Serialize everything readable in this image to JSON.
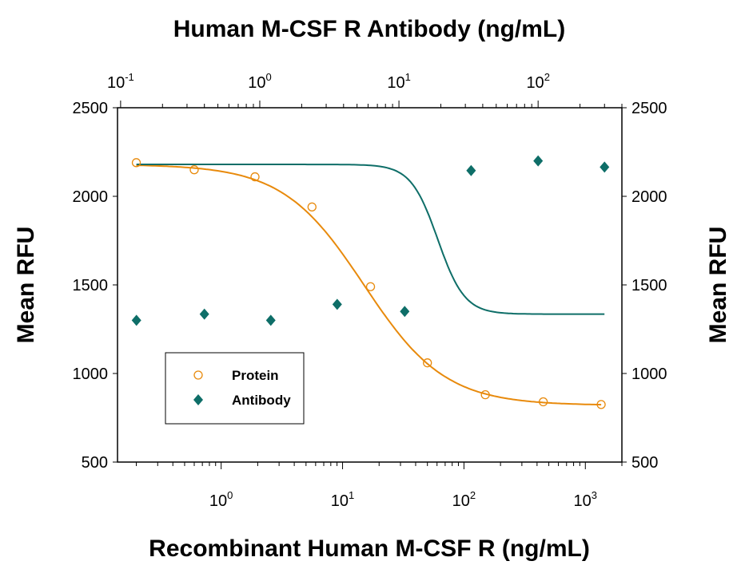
{
  "chart_data": {
    "type": "scatter",
    "title": "Human M-CSF R Antibody (ng/mL)",
    "xlabel": "Recombinant Human M-CSF R (ng/mL)",
    "x2label": "Human M-CSF R Antibody (ng/mL)",
    "ylabel": "Mean RFU",
    "y2label": "Mean RFU",
    "xscale": "log",
    "xlim": [
      0.14,
      2000
    ],
    "x2lim": [
      0.095,
      400
    ],
    "ylim": [
      500,
      2500
    ],
    "yticks": [
      "500",
      "1000",
      "1500",
      "2000",
      "2500"
    ],
    "xticks": [
      {
        "base": "10",
        "exp": "0"
      },
      {
        "base": "10",
        "exp": "1"
      },
      {
        "base": "10",
        "exp": "2"
      },
      {
        "base": "10",
        "exp": "3"
      }
    ],
    "x2ticks": [
      {
        "base": "10",
        "exp": "-1"
      },
      {
        "base": "10",
        "exp": "0"
      },
      {
        "base": "10",
        "exp": "1"
      },
      {
        "base": "10",
        "exp": "2"
      }
    ],
    "grid": false,
    "legend_position": "lower-left",
    "series": [
      {
        "name": "Protein",
        "axis": "bottom",
        "marker": "open-circle",
        "color": "#E88A0C",
        "x": [
          0.2,
          0.6,
          1.9,
          5.6,
          17,
          50,
          150,
          450,
          1350
        ],
        "y": [
          2190,
          2150,
          2110,
          1940,
          1490,
          1060,
          880,
          840,
          825
        ],
        "fit": {
          "top": 2180,
          "bottom": 820,
          "ec50": 15,
          "hill": 1.3
        }
      },
      {
        "name": "Antibody",
        "axis": "top",
        "marker": "filled-diamond",
        "color": "#0E6E68",
        "x": [
          0.13,
          0.4,
          1.2,
          3.6,
          11,
          33,
          100,
          300
        ],
        "y": [
          1300,
          1335,
          1300,
          1390,
          1350,
          2145,
          2200,
          2165
        ],
        "fit": {
          "bottom": 1335,
          "top": 2180,
          "ec50": 19,
          "hill": 4.5
        }
      }
    ]
  }
}
